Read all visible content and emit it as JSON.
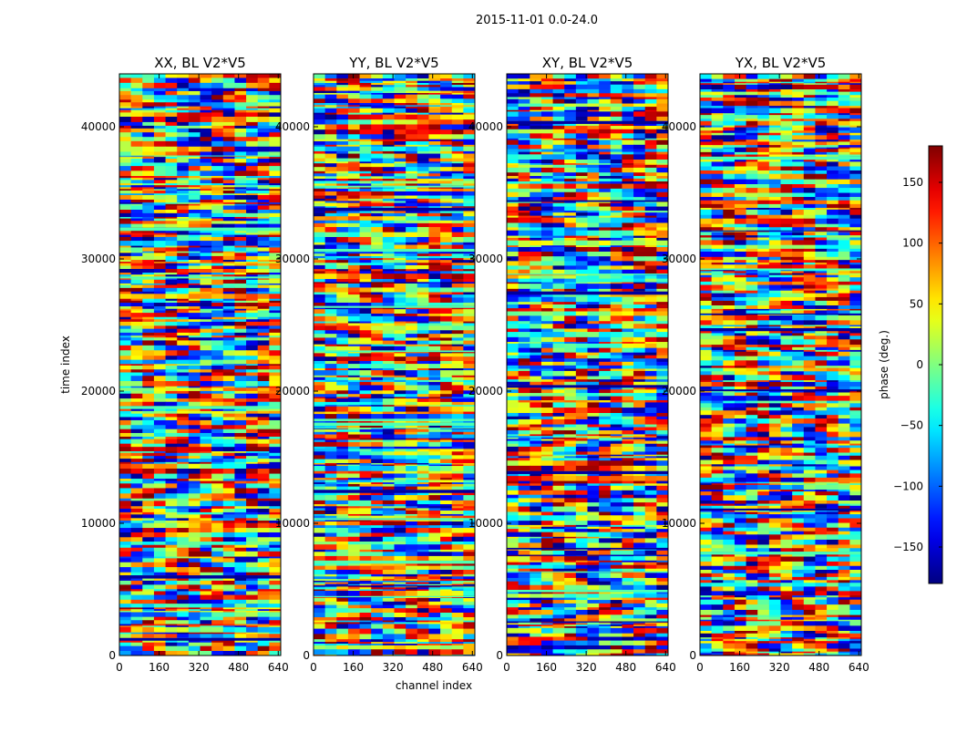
{
  "chart_data": {
    "type": "heatmap",
    "suptitle": "2015-11-01 0.0-24.0",
    "panels": [
      {
        "title": "XX, BL V2*V5"
      },
      {
        "title": "YY, BL V2*V5"
      },
      {
        "title": "XY, BL V2*V5"
      },
      {
        "title": "YX, BL V2*V5"
      }
    ],
    "xlabel": "channel index",
    "ylabel": "time index",
    "xlim": [
      0,
      650
    ],
    "ylim": [
      0,
      44000
    ],
    "xticks": [
      0,
      160,
      320,
      480,
      640
    ],
    "yticks": [
      0,
      10000,
      20000,
      30000,
      40000
    ],
    "colorbar": {
      "label": "phase (deg.)",
      "range": [
        -180,
        180
      ],
      "ticks": [
        -150,
        -100,
        -50,
        0,
        50,
        100,
        150
      ],
      "colormap": "jet"
    },
    "value_note": "phase values vary rapidly per time/channel; dense striped pattern across all channels"
  }
}
